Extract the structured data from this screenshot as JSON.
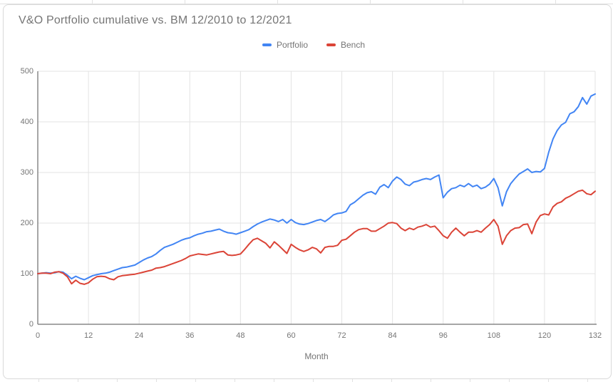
{
  "chart": {
    "title": "V&O Portfolio cumulative vs. BM 12/2010 to 12/2021",
    "x_axis_label": "Month",
    "legend_items": [
      {
        "label": "Portfolio",
        "color": "#4285f4"
      },
      {
        "label": "Bench",
        "color": "#db4437"
      }
    ],
    "colors": {
      "portfolio_line": "#4285f4",
      "bench_line": "#db4437",
      "gridline": "#e3e3e3",
      "axis_line": "#888888",
      "text": "#757575",
      "card_border": "#d9d9d9",
      "background": "#ffffff"
    }
  },
  "chart_data": {
    "type": "line",
    "title": "V&O Portfolio cumulative vs. BM 12/2010 to 12/2021",
    "xlabel": "Month",
    "ylabel": "",
    "x_min": 0,
    "x_max": 132,
    "x_step": 1,
    "x_ticks": [
      0,
      12,
      24,
      36,
      48,
      60,
      72,
      84,
      96,
      108,
      120,
      132
    ],
    "y_ticks": [
      0,
      100,
      200,
      300,
      400,
      500
    ],
    "ylim": [
      0,
      500
    ],
    "grid": true,
    "legend_position": "top-center",
    "series": [
      {
        "name": "Portfolio",
        "color": "#4285f4",
        "values": [
          100,
          101,
          102,
          101,
          102,
          104,
          103,
          97,
          90,
          95,
          91,
          88,
          92,
          96,
          98,
          100,
          101,
          103,
          106,
          109,
          112,
          113,
          115,
          117,
          122,
          127,
          131,
          134,
          139,
          146,
          152,
          155,
          158,
          162,
          166,
          169,
          171,
          175,
          178,
          180,
          183,
          184,
          186,
          188,
          184,
          181,
          180,
          178,
          181,
          184,
          187,
          193,
          198,
          202,
          205,
          208,
          206,
          203,
          207,
          200,
          207,
          201,
          198,
          197,
          199,
          202,
          205,
          207,
          203,
          209,
          216,
          219,
          220,
          223,
          236,
          241,
          248,
          255,
          260,
          262,
          257,
          271,
          276,
          270,
          283,
          291,
          286,
          277,
          274,
          281,
          283,
          286,
          288,
          286,
          291,
          295,
          250,
          261,
          268,
          270,
          275,
          272,
          278,
          272,
          275,
          268,
          271,
          277,
          288,
          270,
          234,
          262,
          278,
          288,
          297,
          302,
          307,
          300,
          302,
          301,
          308,
          340,
          366,
          383,
          394,
          399,
          416,
          420,
          430,
          448,
          435,
          451,
          455
        ]
      },
      {
        "name": "Bench",
        "color": "#db4437",
        "values": [
          100,
          101,
          101,
          100,
          103,
          104,
          101,
          94,
          80,
          87,
          81,
          79,
          82,
          89,
          94,
          95,
          94,
          90,
          88,
          94,
          96,
          97,
          98,
          99,
          101,
          103,
          105,
          107,
          111,
          112,
          114,
          117,
          120,
          123,
          126,
          130,
          135,
          137,
          139,
          138,
          137,
          139,
          141,
          143,
          144,
          137,
          136,
          137,
          139,
          148,
          158,
          167,
          170,
          165,
          160,
          151,
          163,
          156,
          148,
          140,
          158,
          152,
          147,
          144,
          147,
          152,
          149,
          141,
          152,
          154,
          154,
          156,
          166,
          168,
          175,
          182,
          187,
          189,
          189,
          184,
          184,
          189,
          194,
          200,
          201,
          199,
          190,
          185,
          190,
          187,
          192,
          194,
          197,
          192,
          194,
          185,
          175,
          170,
          182,
          190,
          182,
          175,
          182,
          182,
          185,
          182,
          190,
          197,
          207,
          194,
          158,
          175,
          185,
          190,
          191,
          197,
          198,
          179,
          202,
          215,
          218,
          216,
          232,
          239,
          242,
          249,
          253,
          258,
          263,
          265,
          258,
          256,
          263
        ]
      }
    ]
  }
}
